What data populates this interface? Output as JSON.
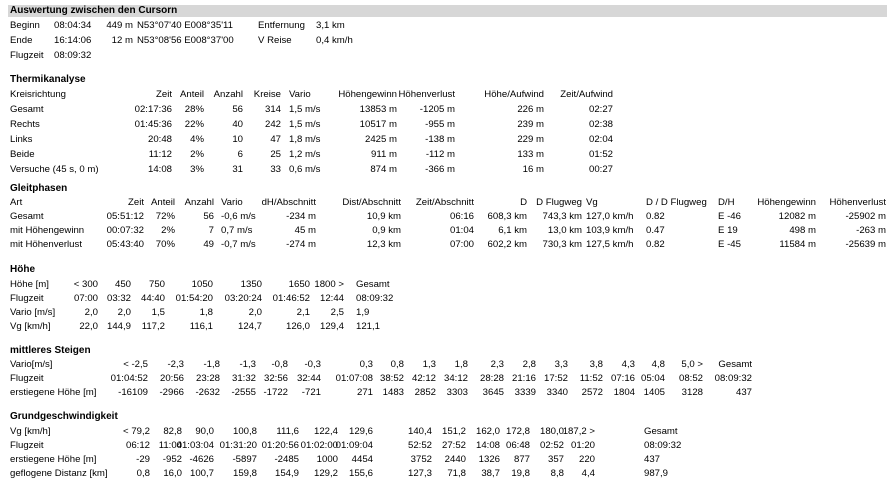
{
  "title": "Auswertung zwischen den Cursorn",
  "summary": {
    "beginn": {
      "label": "Beginn",
      "time": "08:04:34",
      "alt": "449 m",
      "pos": "N53°07'40 E008°35'11",
      "extra_label": "Entfernung",
      "extra_value": "3,1 km"
    },
    "ende": {
      "label": "Ende",
      "time": "16:14:06",
      "alt": "12 m",
      "pos": "N53°08'56 E008°37'00",
      "extra_label": "V Reise",
      "extra_value": "0,4 km/h"
    },
    "flugzeit": {
      "label": "Flugzeit",
      "value": "08:09:32"
    }
  },
  "thermik": {
    "title": "Thermikanalyse",
    "headers": [
      "Kreisrichtung",
      "Zeit",
      "Anteil",
      "Anzahl",
      "Kreise",
      "Vario",
      "Höhengewinn",
      "Höhenverlust",
      "Höhe/Aufwind",
      "Zeit/Aufwind"
    ],
    "rows": [
      [
        "Gesamt",
        "02:17:36",
        "28%",
        "56",
        "314",
        "1,5 m/s",
        "13853 m",
        "-1205 m",
        "226 m",
        "02:27"
      ],
      [
        "Rechts",
        "01:45:36",
        "22%",
        "40",
        "242",
        "1,5 m/s",
        "10517 m",
        "-955 m",
        "239 m",
        "02:38"
      ],
      [
        "Links",
        "20:48",
        "4%",
        "10",
        "47",
        "1,8 m/s",
        "2425 m",
        "-138 m",
        "229 m",
        "02:04"
      ],
      [
        "Beide",
        "11:12",
        "2%",
        "6",
        "25",
        "1,2 m/s",
        "911 m",
        "-112 m",
        "133 m",
        "01:52"
      ],
      [
        "Versuche (45 s,    0 m)",
        "14:08",
        "3%",
        "31",
        "33",
        "0,6 m/s",
        "874 m",
        "-366 m",
        "16 m",
        "00:27"
      ]
    ]
  },
  "gleit": {
    "title": "Gleitphasen",
    "headers": [
      "Art",
      "Zeit",
      "Anteil",
      "Anzahl",
      "Vario",
      "dH/Abschnitt",
      "Dist/Abschnitt",
      "Zeit/Abschnitt",
      "D",
      "D Flugweg",
      "Vg",
      "D / D Flugweg",
      "D/H",
      "Höhengewinn",
      "Höhenverlust"
    ],
    "rows": [
      [
        "Gesamt",
        "05:51:12",
        "72%",
        "56",
        "-0,6 m/s",
        "-234 m",
        "10,9 km",
        "06:16",
        "608,3 km",
        "743,3 km",
        "127,0 km/h",
        "0.82",
        "E -46",
        "12082 m",
        "-25902 m"
      ],
      [
        "mit Höhengewinn",
        "00:07:32",
        "2%",
        "7",
        "0,7 m/s",
        "45 m",
        "0,9 km",
        "01:04",
        "6,1 km",
        "13,0 km",
        "103,9 km/h",
        "0.47",
        "E 19",
        "498 m",
        "-263 m"
      ],
      [
        "mit Höhenverlust",
        "05:43:40",
        "70%",
        "49",
        "-0,7 m/s",
        "-274 m",
        "12,3 km",
        "07:00",
        "602,2 km",
        "730,3 km",
        "127,5 km/h",
        "0.82",
        "E -45",
        "11584 m",
        "-25639 m"
      ]
    ]
  },
  "hoehe": {
    "title": "Höhe",
    "rows": [
      [
        "Höhe [m]",
        "<   300",
        "450",
        "750",
        "1050",
        "1350",
        "1650",
        "1800 >",
        "Gesamt"
      ],
      [
        "Flugzeit",
        "07:00",
        "03:32",
        "44:40",
        "01:54:20",
        "03:20:24",
        "01:46:52",
        "12:44",
        "08:09:32"
      ],
      [
        "Vario [m/s]",
        "2,0",
        "2,0",
        "1,5",
        "1,8",
        "2,0",
        "2,1",
        "2,5",
        "1,9"
      ],
      [
        "Vg [km/h]",
        "22,0",
        "144,9",
        "117,2",
        "116,1",
        "124,7",
        "126,0",
        "129,4",
        "121,1"
      ]
    ]
  },
  "steigen": {
    "title": "mittleres Steigen",
    "rows": [
      [
        "Vario[m/s]",
        "< -2,5",
        "-2,3",
        "-1,8",
        "-1,3",
        "-0,8",
        "-0,3",
        "0,3",
        "0,8",
        "1,3",
        "1,8",
        "2,3",
        "2,8",
        "3,3",
        "3,8",
        "4,3",
        "4,8",
        "5,0 >",
        "Gesamt"
      ],
      [
        "Flugzeit",
        "01:04:52",
        "20:56",
        "23:28",
        "31:32",
        "32:56",
        "32:44",
        "01:07:08",
        "38:52",
        "42:12",
        "34:12",
        "28:28",
        "21:16",
        "17:52",
        "11:52",
        "07:16",
        "05:04",
        "08:52",
        "08:09:32"
      ],
      [
        "erstiegene Höhe [m]",
        "-16109",
        "-2966",
        "-2632",
        "-2555",
        "-1722",
        "-721",
        "271",
        "1483",
        "2852",
        "3303",
        "3645",
        "3339",
        "3340",
        "2572",
        "1804",
        "1405",
        "3128",
        "437"
      ]
    ]
  },
  "grund": {
    "title": "Grundgeschwindigkeit",
    "rows": [
      [
        "Vg [km/h]",
        "<  79,2",
        "82,8",
        "90,0",
        "100,8",
        "111,6",
        "122,4",
        "129,6",
        "140,4",
        "151,2",
        "162,0",
        "172,8",
        "180,0",
        "187,2 >",
        "Gesamt"
      ],
      [
        "Flugzeit",
        "06:12",
        "11:04",
        "01:03:04",
        "01:31:20",
        "01:20:56",
        "01:02:00",
        "01:09:04",
        "52:52",
        "27:52",
        "14:08",
        "06:48",
        "02:52",
        "01:20",
        "08:09:32"
      ],
      [
        "erstiegene Höhe [m]",
        "-29",
        "-952",
        "-4626",
        "-5897",
        "-2485",
        "1000",
        "4454",
        "3752",
        "2440",
        "1326",
        "877",
        "357",
        "220",
        "437"
      ],
      [
        "geflogene Distanz [km]",
        "0,8",
        "16,0",
        "100,7",
        "159,8",
        "154,9",
        "129,2",
        "155,6",
        "127,3",
        "71,8",
        "38,7",
        "19,8",
        "8,8",
        "4,4",
        "987,9"
      ]
    ]
  }
}
